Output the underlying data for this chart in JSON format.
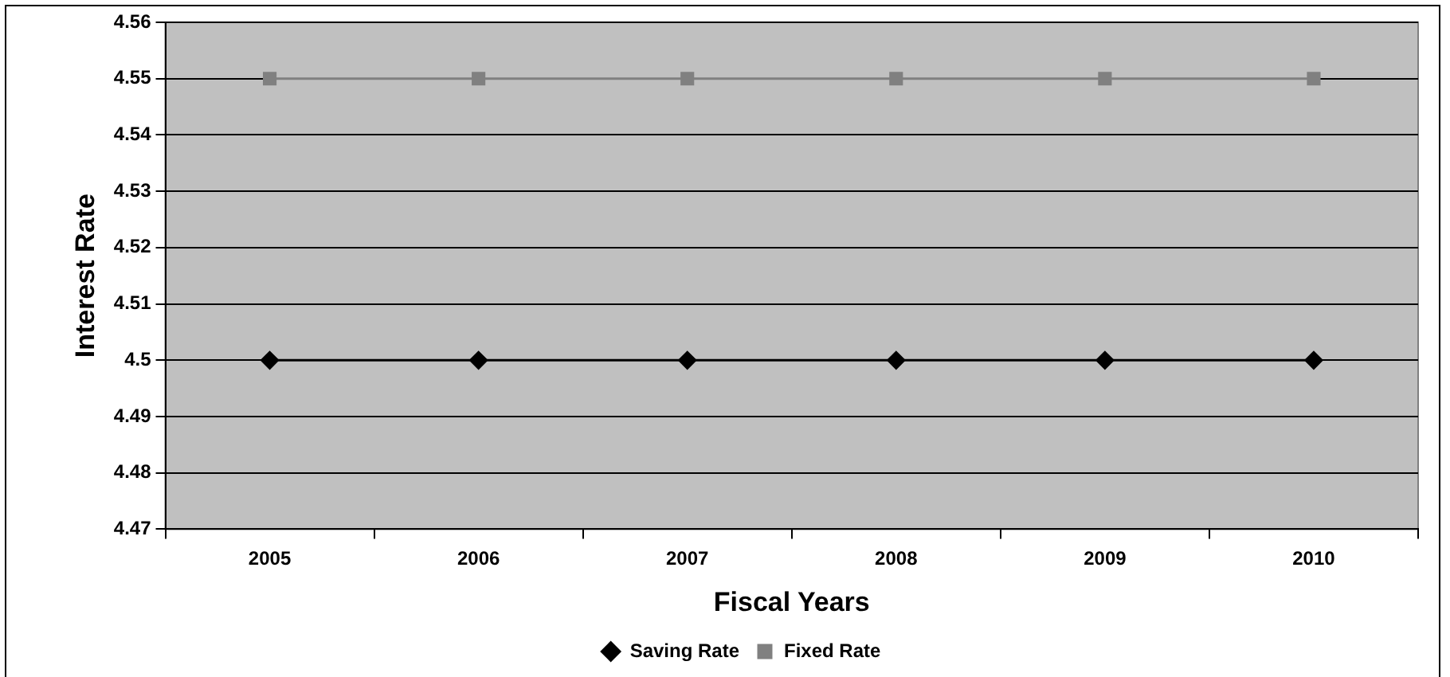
{
  "chart_data": {
    "type": "line",
    "xlabel": "Fiscal Years",
    "ylabel": "Interest Rate",
    "categories": [
      "2005",
      "2006",
      "2007",
      "2008",
      "2009",
      "2010"
    ],
    "series": [
      {
        "name": "Saving Rate",
        "color": "#000000",
        "marker": "diamond",
        "values": [
          4.5,
          4.5,
          4.5,
          4.5,
          4.5,
          4.5
        ]
      },
      {
        "name": "Fixed Rate",
        "color": "#808080",
        "marker": "square",
        "values": [
          4.55,
          4.55,
          4.55,
          4.55,
          4.55,
          4.55
        ]
      }
    ],
    "ylim": [
      4.47,
      4.56
    ],
    "yticks": [
      4.47,
      4.48,
      4.49,
      4.5,
      4.51,
      4.52,
      4.53,
      4.54,
      4.55,
      4.56
    ],
    "grid": "y",
    "legend": "bottom",
    "line_style": "solid"
  }
}
